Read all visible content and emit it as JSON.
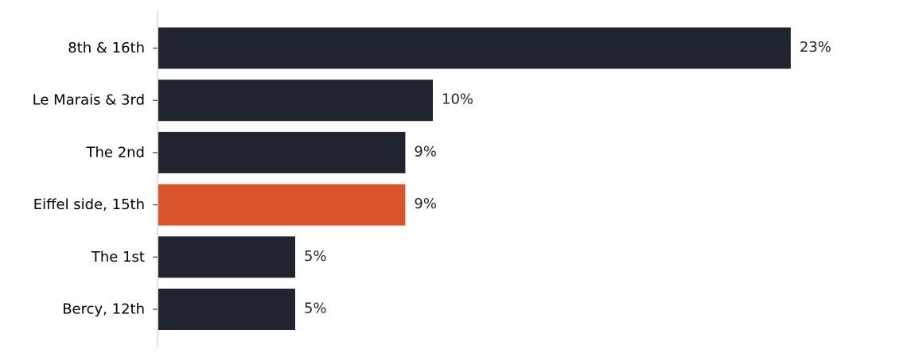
{
  "chart_data": {
    "type": "bar",
    "orientation": "horizontal",
    "categories": [
      "8th & 16th",
      "Le Marais & 3rd",
      "The 2nd",
      "Eiffel side, 15th",
      "The 1st",
      "Bercy, 12th"
    ],
    "values": [
      23,
      10,
      9,
      9,
      5,
      5
    ],
    "value_labels": [
      "23%",
      "10%",
      "9%",
      "9%",
      "5%",
      "5%"
    ],
    "highlight_index": 3,
    "title": "",
    "xlabel": "",
    "ylabel": "",
    "xlim": [
      0,
      27.6
    ],
    "grid": false,
    "x_axis_visible": false,
    "colors": {
      "bar": "#20242f",
      "highlight": "#d9532b",
      "axis": "#d9d9d9"
    }
  }
}
